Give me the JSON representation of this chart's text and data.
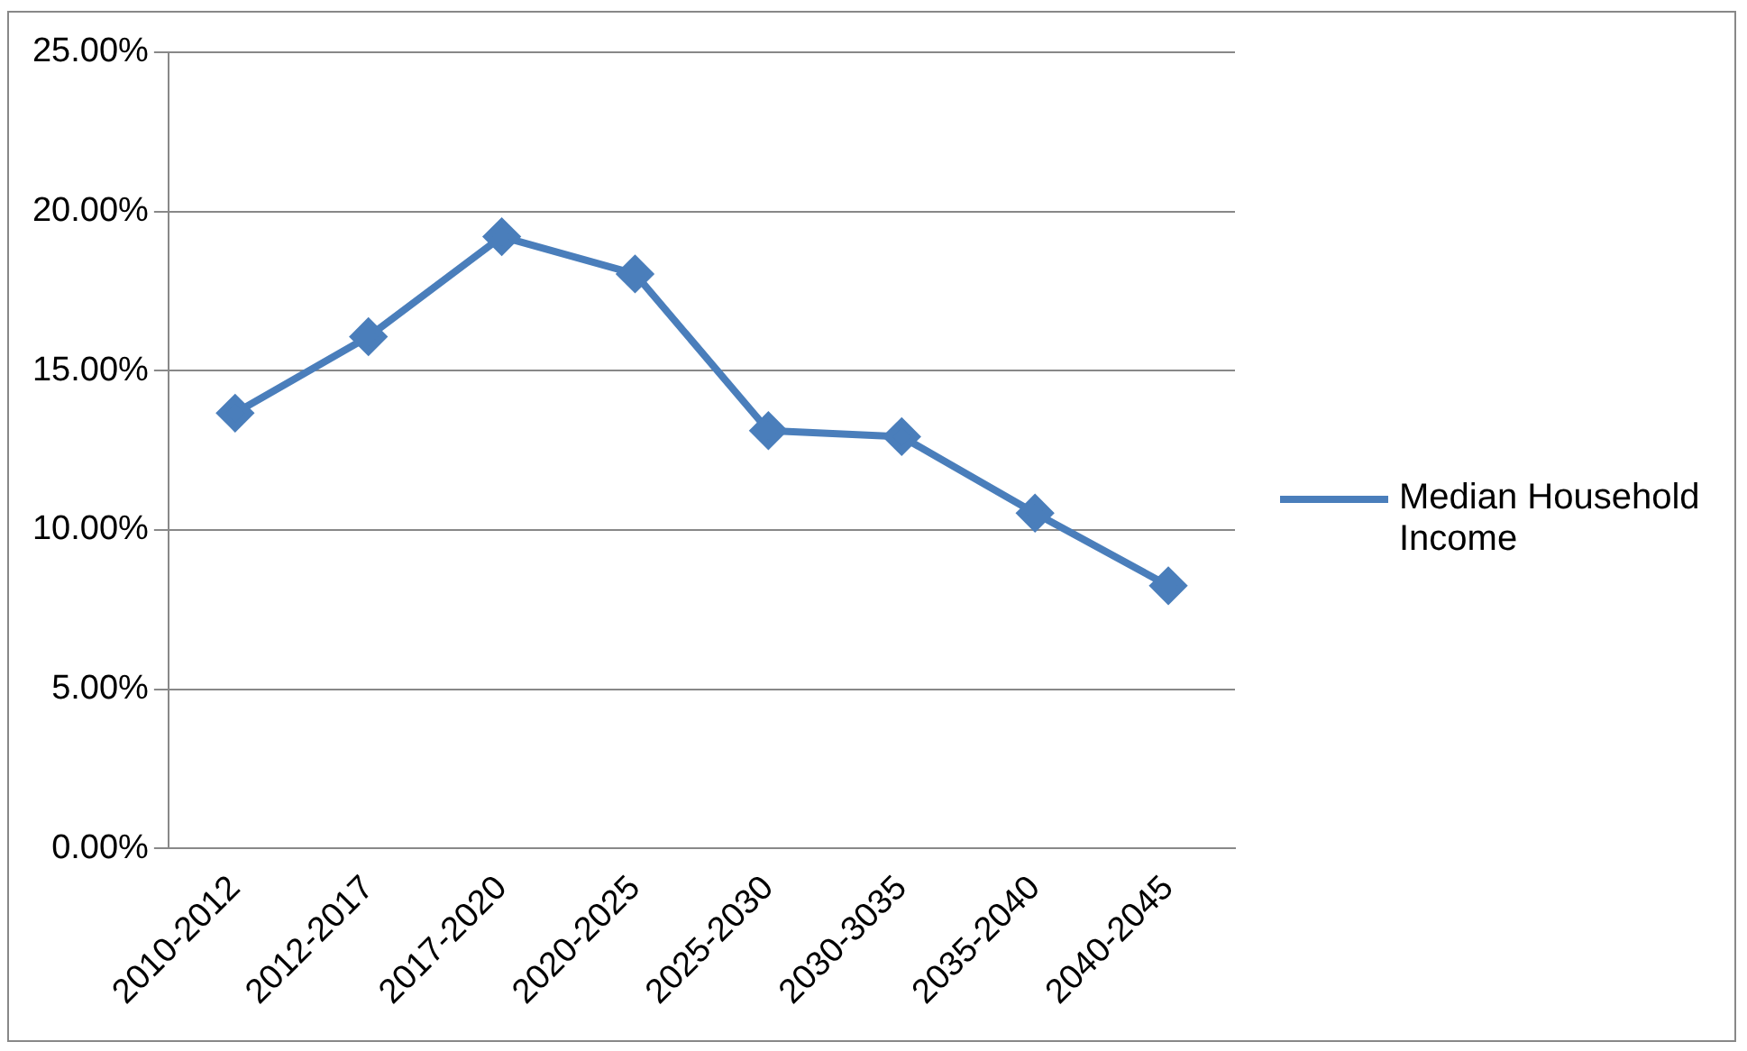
{
  "chart_data": {
    "type": "line",
    "categories": [
      "2010-2012",
      "2012-2017",
      "2017-2020",
      "2020-2025",
      "2025-2030",
      "2030-3035",
      "2035-2040",
      "2040-2045"
    ],
    "series": [
      {
        "name": "Median Household Income",
        "color": "#4a7ebb",
        "values": [
          13.67,
          16.07,
          19.21,
          18.04,
          13.12,
          12.93,
          10.53,
          8.25
        ]
      }
    ],
    "ylim": [
      0,
      25
    ],
    "yticks": [
      {
        "value": 0,
        "label": "0.00%"
      },
      {
        "value": 5,
        "label": "5.00%"
      },
      {
        "value": 10,
        "label": "10.00%"
      },
      {
        "value": 15,
        "label": "15.00%"
      },
      {
        "value": 20,
        "label": "20.00%"
      },
      {
        "value": 25,
        "label": "25.00%"
      }
    ],
    "grid": "y",
    "legend": "right",
    "marker": "diamond",
    "line_style": "solid"
  }
}
